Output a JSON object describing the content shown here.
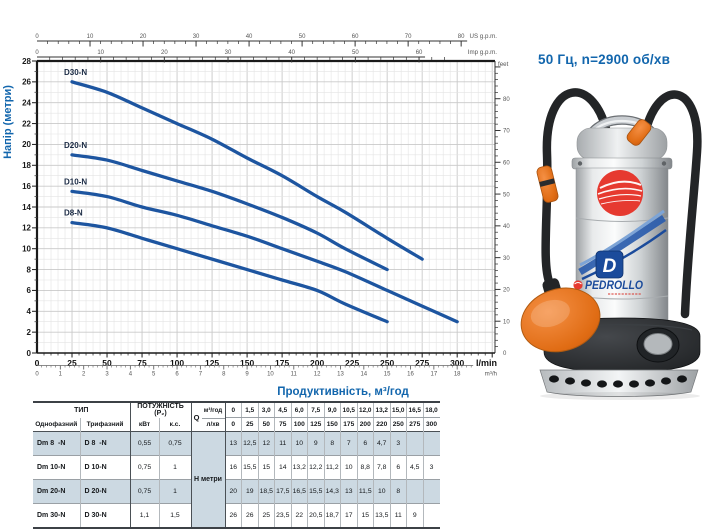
{
  "title": "50 Гц, n=2900 об/хв",
  "colors": {
    "curve": "#1d55a0",
    "blue_text": "#1266ad",
    "curve_label": "#1a2a44",
    "grid_minor": "#e4e4e4",
    "grid_major": "#c9c9c9",
    "axis_dark": "#1a1a1a",
    "tick_text": "#555555",
    "table_shade": "#ccd9e2",
    "orange": "#e87524",
    "red": "#e63a30",
    "navy": "#1b4b9b"
  },
  "chart_data": {
    "type": "line",
    "xlabel": "Продуктивність, м³/год",
    "ylabel": "Напір (метри)",
    "grid": true,
    "legend_position": "on-curve",
    "y_axis": {
      "unit": "м",
      "min": 0,
      "max": 28,
      "major_step": 2,
      "minor_step": 1
    },
    "x_axis_lmin": {
      "unit": "l/min",
      "label_max": 300,
      "major_step": 25,
      "minor_step": 5,
      "axis_max": 327
    },
    "x_axis_m3h": {
      "unit": "m³/h",
      "label_max": 18,
      "major_step": 1,
      "minor_step": 0.2,
      "lmin_per_unit": 16.6667
    },
    "x_axis_usgpm": {
      "unit": "US g.p.m.",
      "label_max": 80,
      "major_step": 10,
      "minor_step": 2,
      "lmin_per_unit": 3.78541
    },
    "x_axis_impgpm": {
      "unit": "Imp g.p.m.",
      "label_max": 60,
      "major_step": 10,
      "minor_step": 2,
      "minor_max": 64,
      "lmin_per_unit": 4.54609
    },
    "y_axis_feet": {
      "unit": "feet",
      "label_max": 80,
      "major_step": 10,
      "minor_step": 2,
      "minor_max": 90,
      "m_per_unit": 0.3048
    },
    "series": [
      {
        "name": "D30-N",
        "points": [
          [
            25,
            26
          ],
          [
            50,
            25
          ],
          [
            75,
            23.5
          ],
          [
            100,
            22
          ],
          [
            125,
            20.5
          ],
          [
            150,
            18.7
          ],
          [
            175,
            17
          ],
          [
            200,
            15
          ],
          [
            220,
            13.5
          ],
          [
            250,
            11
          ],
          [
            275,
            9
          ]
        ]
      },
      {
        "name": "D20-N",
        "points": [
          [
            25,
            19
          ],
          [
            50,
            18.5
          ],
          [
            75,
            17.5
          ],
          [
            100,
            16.5
          ],
          [
            125,
            15.5
          ],
          [
            150,
            14.3
          ],
          [
            175,
            13
          ],
          [
            200,
            11.5
          ],
          [
            220,
            10
          ],
          [
            250,
            8
          ]
        ]
      },
      {
        "name": "D10-N",
        "points": [
          [
            25,
            15.5
          ],
          [
            50,
            15
          ],
          [
            75,
            14
          ],
          [
            100,
            13.2
          ],
          [
            125,
            12.2
          ],
          [
            150,
            11.2
          ],
          [
            175,
            10
          ],
          [
            200,
            8.8
          ],
          [
            220,
            7.8
          ],
          [
            250,
            6
          ],
          [
            275,
            4.5
          ],
          [
            300,
            3
          ]
        ]
      },
      {
        "name": "D8-N",
        "points": [
          [
            25,
            12.5
          ],
          [
            50,
            12
          ],
          [
            75,
            11
          ],
          [
            100,
            10
          ],
          [
            125,
            9
          ],
          [
            150,
            8
          ],
          [
            175,
            7
          ],
          [
            200,
            6
          ],
          [
            220,
            4.7
          ],
          [
            250,
            3
          ]
        ]
      }
    ]
  },
  "pump": {
    "brand": "PEDROLLO",
    "model_letter": "D"
  },
  "table": {
    "headers": {
      "type": "ТИП",
      "single": "Однофазний",
      "three": "Трифазний",
      "power": "ПОТУЖНІСТЬ (P₂)",
      "kw": "кВт",
      "hp": "к.с.",
      "q": "Q",
      "m3h": "м³/год",
      "lmin": "л/хв",
      "head_unit": "Н метри"
    },
    "flow_m3h": [
      "0",
      "1,5",
      "3,0",
      "4,5",
      "6,0",
      "7,5",
      "9,0",
      "10,5",
      "12,0",
      "13,2",
      "15,0",
      "16,5",
      "18,0"
    ],
    "flow_lmin": [
      "0",
      "25",
      "50",
      "75",
      "100",
      "125",
      "150",
      "175",
      "200",
      "220",
      "250",
      "275",
      "300"
    ],
    "rows": [
      {
        "single": "Dm 8  -N",
        "three": "D 8  -N",
        "kw": "0,55",
        "hp": "0,75",
        "shaded": true,
        "head": [
          "13",
          "12,5",
          "12",
          "11",
          "10",
          "9",
          "8",
          "7",
          "6",
          "4,7",
          "3",
          "",
          ""
        ]
      },
      {
        "single": "Dm 10-N",
        "three": "D 10-N",
        "kw": "0,75",
        "hp": "1",
        "shaded": false,
        "head": [
          "16",
          "15,5",
          "15",
          "14",
          "13,2",
          "12,2",
          "11,2",
          "10",
          "8,8",
          "7,8",
          "6",
          "4,5",
          "3"
        ]
      },
      {
        "single": "Dm 20-N",
        "three": "D 20-N",
        "kw": "0,75",
        "hp": "1",
        "shaded": true,
        "head": [
          "20",
          "19",
          "18,5",
          "17,5",
          "16,5",
          "15,5",
          "14,3",
          "13",
          "11,5",
          "10",
          "8",
          "",
          ""
        ]
      },
      {
        "single": "Dm 30-N",
        "three": "D 30-N",
        "kw": "1,1",
        "hp": "1,5",
        "shaded": false,
        "head": [
          "26",
          "26",
          "25",
          "23,5",
          "22",
          "20,5",
          "18,7",
          "17",
          "15",
          "13,5",
          "11",
          "9",
          ""
        ]
      }
    ]
  }
}
